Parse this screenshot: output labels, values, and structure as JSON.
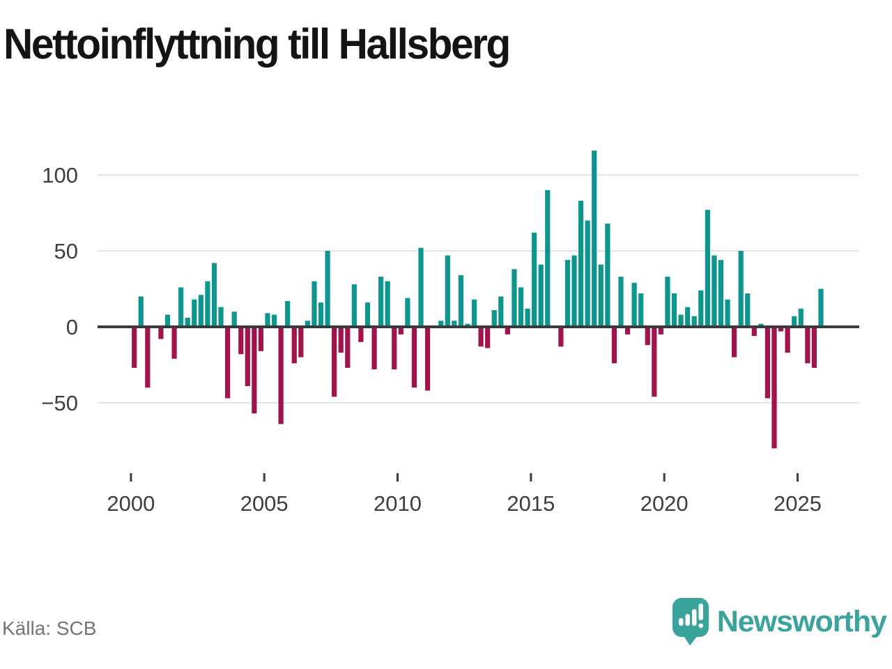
{
  "title": "Nettoinflyttning till Hallsberg",
  "source": "Källa: SCB",
  "brand": "Newsworthy",
  "colors": {
    "positive": "#0e968e",
    "negative": "#a1134b",
    "zero_axis": "#3a3a3a",
    "grid": "#e2e2e2",
    "tick_label": "#3d3d3d",
    "title_text": "#141414",
    "source_text": "#757575",
    "brand_teal": "#3aa39b"
  },
  "chart_data": {
    "type": "bar",
    "title": "Nettoinflyttning till Hallsberg",
    "frequency": "quarterly",
    "grid": "horizontal",
    "legend": "none",
    "ylim": [
      -85,
      120
    ],
    "y_ticks": [
      100,
      50,
      0,
      -50
    ],
    "y_tick_labels": [
      "100",
      "50",
      "0",
      "−50"
    ],
    "x_tick_labels": [
      "2000",
      "2005",
      "2010",
      "2015",
      "2020",
      "2025"
    ],
    "positive_color": "#0e968e",
    "negative_color": "#a1134b",
    "quarterly_values": [
      {
        "year": 2000,
        "q": [
          -27,
          20,
          -40,
          0
        ]
      },
      {
        "year": 2001,
        "q": [
          -8,
          8,
          -21,
          26
        ]
      },
      {
        "year": 2002,
        "q": [
          6,
          18,
          21,
          30
        ]
      },
      {
        "year": 2003,
        "q": [
          42,
          13,
          -47,
          10
        ]
      },
      {
        "year": 2004,
        "q": [
          -18,
          -39,
          -57,
          -16
        ]
      },
      {
        "year": 2005,
        "q": [
          9,
          8,
          -64,
          17
        ]
      },
      {
        "year": 2006,
        "q": [
          -24,
          -20,
          4,
          30
        ]
      },
      {
        "year": 2007,
        "q": [
          16,
          50,
          -46,
          -17
        ]
      },
      {
        "year": 2008,
        "q": [
          -27,
          28,
          -10,
          16
        ]
      },
      {
        "year": 2009,
        "q": [
          -28,
          33,
          30,
          -28
        ]
      },
      {
        "year": 2010,
        "q": [
          -5,
          19,
          -40,
          52
        ]
      },
      {
        "year": 2011,
        "q": [
          -42,
          0,
          4,
          47
        ]
      },
      {
        "year": 2012,
        "q": [
          4,
          34,
          2,
          18
        ]
      },
      {
        "year": 2013,
        "q": [
          -13,
          -14,
          11,
          20
        ]
      },
      {
        "year": 2014,
        "q": [
          -5,
          38,
          26,
          12
        ]
      },
      {
        "year": 2015,
        "q": [
          62,
          41,
          90,
          0
        ]
      },
      {
        "year": 2016,
        "q": [
          -13,
          44,
          47,
          83
        ]
      },
      {
        "year": 2017,
        "q": [
          70,
          116,
          41,
          68
        ]
      },
      {
        "year": 2018,
        "q": [
          -24,
          33,
          -5,
          29
        ]
      },
      {
        "year": 2019,
        "q": [
          22,
          -12,
          -46,
          -5
        ]
      },
      {
        "year": 2020,
        "q": [
          33,
          22,
          8,
          13
        ]
      },
      {
        "year": 2021,
        "q": [
          7,
          24,
          77,
          47
        ]
      },
      {
        "year": 2022,
        "q": [
          44,
          18,
          -20,
          50
        ]
      },
      {
        "year": 2023,
        "q": [
          22,
          -6,
          2,
          -47
        ]
      },
      {
        "year": 2024,
        "q": [
          -80,
          -3,
          -17,
          7
        ]
      },
      {
        "year": 2025,
        "q": [
          12,
          -24,
          -27,
          25
        ]
      }
    ]
  }
}
